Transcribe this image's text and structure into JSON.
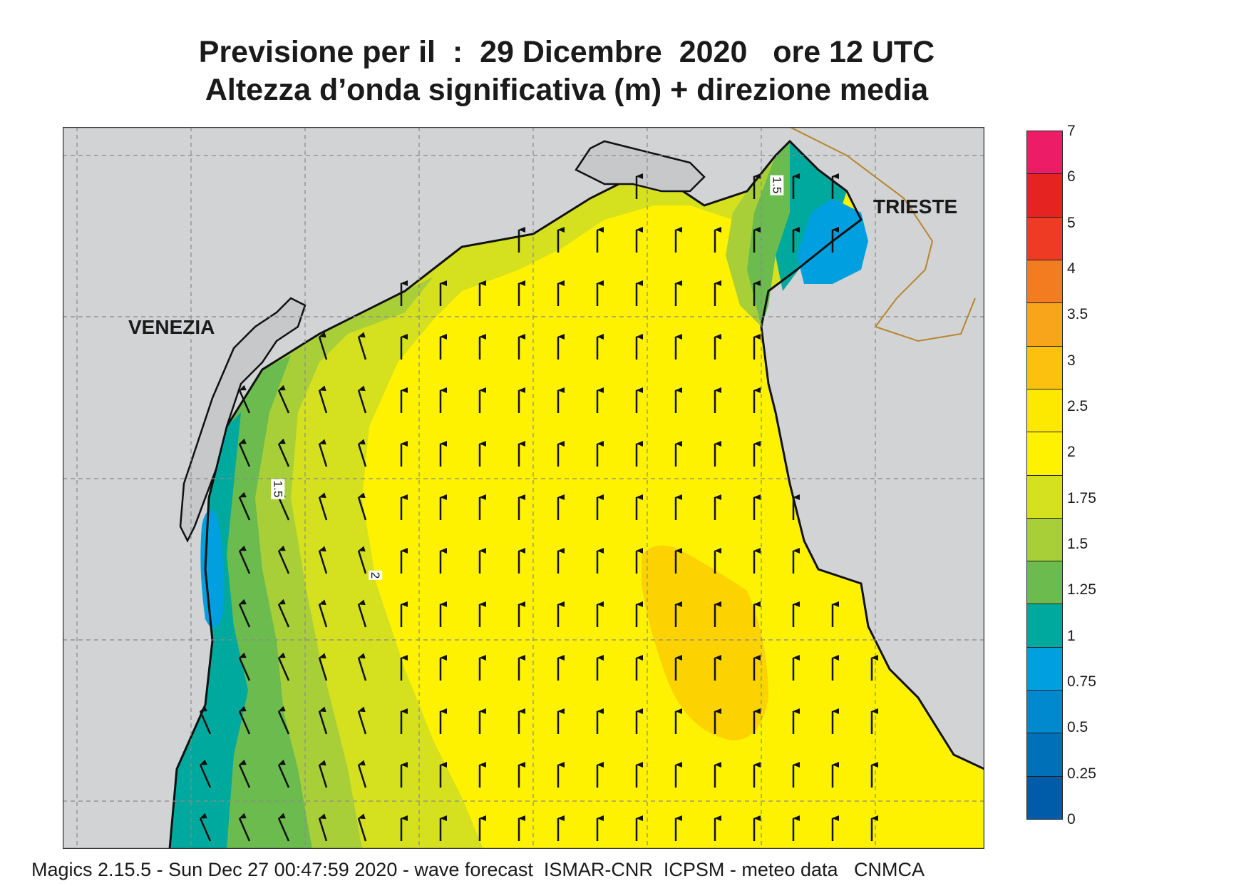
{
  "title": {
    "line1": "Previsione per il  :  29 Dicembre  2020   ore 12 UTC",
    "line2": "Altezza d’onda significativa (m) + direzione media"
  },
  "map": {
    "cities": {
      "venezia": "VENEZIA",
      "trieste": "TRIESTE"
    },
    "contour_labels": {
      "c1": "1.5",
      "c2": "2",
      "c3": "1.5"
    },
    "land_color": "#d1d3d4",
    "sea_default_color": "#fff200",
    "arrow_direction": "north"
  },
  "colorbar": {
    "ticks": [
      "7",
      "6",
      "5",
      "4",
      "3.5",
      "3",
      "2.5",
      "2",
      "1.75",
      "1.5",
      "1.25",
      "1",
      "0.75",
      "0.5",
      "0.25",
      "0"
    ],
    "colors": [
      "#ec1c66",
      "#e52421",
      "#ee3b24",
      "#f47c20",
      "#f9a51b",
      "#fcc10e",
      "#fde800",
      "#fff200",
      "#d5e01f",
      "#a8cf38",
      "#6cbb4e",
      "#00a99d",
      "#00a0e0",
      "#0089cf",
      "#0070b9",
      "#005ca9"
    ]
  },
  "footer": "Magics 2.15.5 - Sun Dec 27 00:47:59 2020 - wave forecast  ISMAR-CNR  ICPSM - meteo data   CNMCA"
}
